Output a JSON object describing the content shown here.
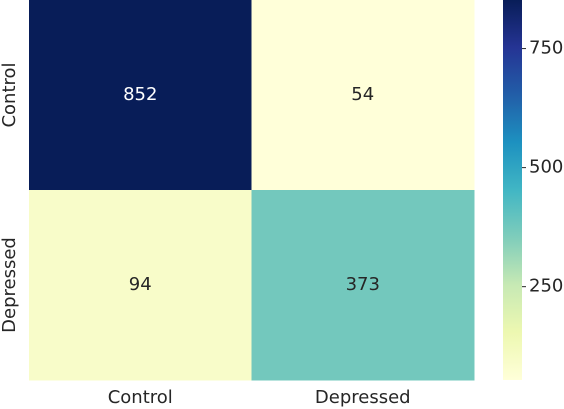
{
  "chart_data": {
    "type": "heatmap",
    "categories": [
      "Control",
      "Depressed"
    ],
    "y_categories": [
      "Control",
      "Depressed"
    ],
    "values": [
      [
        852,
        54
      ],
      [
        94,
        373
      ]
    ],
    "colormap": "YlGnBu",
    "clim": [
      54,
      852
    ],
    "cticks": [
      250,
      500,
      750
    ]
  }
}
